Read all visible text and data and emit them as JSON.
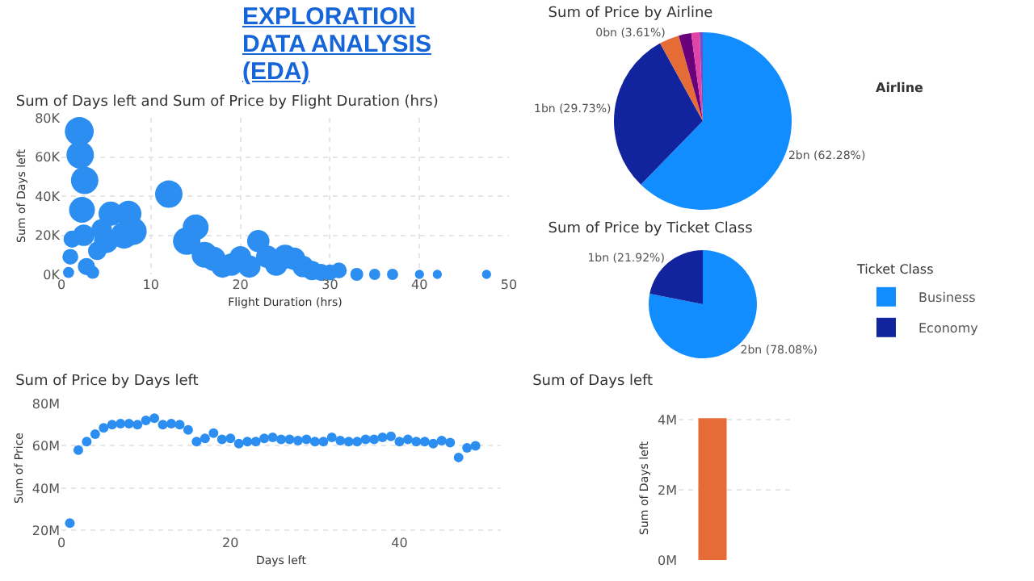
{
  "chart_data": [
    {
      "type": "other",
      "title": "EXPLORATION DATA ANALYSIS (EDA)"
    },
    {
      "type": "bubble",
      "title": "Sum of Days left and Sum of Price by Flight Duration (hrs)",
      "xlabel": "Flight Duration (hrs)",
      "ylabel": "Sum of Days left",
      "grid": true,
      "legend": false,
      "marker": "circle",
      "xlim": [
        0,
        50
      ],
      "xticks": [
        0,
        10,
        20,
        30,
        40,
        50
      ],
      "ylim": [
        0,
        80000
      ],
      "yticks": [
        {
          "value": 0,
          "label": "0K"
        },
        {
          "value": 20000,
          "label": "20K"
        },
        {
          "value": 40000,
          "label": "40K"
        },
        {
          "value": 60000,
          "label": "60K"
        },
        {
          "value": 80000,
          "label": "80K"
        }
      ],
      "series": [
        {
          "color": "#2b8ef0",
          "x": [
            2.0,
            2.1,
            2.6,
            2.3,
            2.5,
            1.2,
            1.0,
            2.8,
            0.8,
            3.5,
            4,
            4.5,
            5,
            5.5,
            7,
            7.5,
            8,
            12,
            14,
            15,
            16,
            17,
            18,
            19,
            20,
            21,
            22,
            23,
            24,
            25,
            26,
            27,
            28,
            29,
            30,
            31,
            33,
            35,
            37,
            40,
            42,
            47.5
          ],
          "values": [
            73000,
            61000,
            48000,
            33000,
            20000,
            18000,
            9000,
            4000,
            1000,
            1000,
            12000,
            23000,
            17000,
            31000,
            20000,
            31000,
            22000,
            41000,
            17000,
            24000,
            10000,
            8000,
            4000,
            5000,
            9000,
            4000,
            17000,
            9000,
            5000,
            9000,
            8000,
            4000,
            2000,
            1000,
            1000,
            2000,
            0,
            0,
            0,
            0,
            0,
            0
          ],
          "sizes": [
            1,
            0.9,
            0.9,
            0.8,
            0.55,
            0.35,
            0.3,
            0.35,
            0.15,
            0.2,
            0.4,
            0.5,
            0.7,
            0.7,
            0.85,
            0.8,
            0.9,
            0.9,
            0.9,
            0.8,
            0.8,
            0.7,
            0.6,
            0.6,
            0.55,
            0.6,
            0.6,
            0.6,
            0.6,
            0.7,
            0.6,
            0.55,
            0.45,
            0.35,
            0.3,
            0.3,
            0.2,
            0.15,
            0.15,
            0.1,
            0.1,
            0.1
          ]
        }
      ]
    },
    {
      "type": "pie",
      "title": "Sum of Price by Airline",
      "legend_title": "Airline",
      "categories": [
        null,
        null,
        null,
        null,
        null,
        null
      ],
      "values": [
        62.28,
        29.73,
        3.61,
        2.3,
        1.5,
        0.58
      ],
      "colors": [
        "#118dff",
        "#12239e",
        "#e66c37",
        "#6b007b",
        "#e044a7",
        "#744ec2"
      ],
      "value_labels": [
        "2bn (62.28%)",
        "1bn (29.73%)",
        "0bn (3.61%)",
        null,
        null,
        null
      ]
    },
    {
      "type": "pie",
      "title": "Sum of Price by Ticket Class",
      "legend_title": "Ticket Class",
      "legend": "right",
      "categories": [
        "Business",
        "Economy"
      ],
      "values": [
        78.08,
        21.92
      ],
      "colors": [
        "#118dff",
        "#12239e"
      ],
      "value_labels": [
        "2bn (78.08%)",
        "1bn (21.92%)"
      ]
    },
    {
      "type": "scatter",
      "title": "Sum of Price by Days left",
      "xlabel": "Days left",
      "ylabel": "Sum of Price",
      "grid": "y",
      "marker": "circle",
      "xlim": [
        0,
        52
      ],
      "xticks": [
        0,
        20,
        40
      ],
      "ylim": [
        19,
        80
      ],
      "yticks": [
        {
          "value": 20,
          "label": "20M"
        },
        {
          "value": 40,
          "label": "40M"
        },
        {
          "value": 60,
          "label": "60M"
        },
        {
          "value": 80,
          "label": "80M"
        }
      ],
      "series": [
        {
          "color": "#2b8ef0",
          "x": [
            1,
            2,
            3,
            4,
            5,
            6,
            7,
            8,
            9,
            10,
            11,
            12,
            13,
            14,
            15,
            16,
            17,
            18,
            19,
            20,
            21,
            22,
            23,
            24,
            25,
            26,
            27,
            28,
            29,
            30,
            31,
            32,
            33,
            34,
            35,
            36,
            37,
            38,
            39,
            40,
            41,
            42,
            43,
            44,
            45,
            46,
            47,
            48,
            49
          ],
          "values": [
            23.5,
            58,
            62,
            65.5,
            68.5,
            70,
            70.5,
            70.5,
            70,
            72,
            73,
            70,
            70.5,
            70,
            67.5,
            62,
            63.5,
            66,
            63,
            63.5,
            61,
            62,
            62,
            63.5,
            64,
            63,
            63,
            62.5,
            63,
            62,
            62,
            64,
            62.5,
            62,
            62,
            63,
            63,
            64,
            64.5,
            62,
            63,
            62,
            62,
            61,
            62.5,
            61.5,
            54.5,
            59,
            60
          ]
        }
      ]
    },
    {
      "type": "bar",
      "title": "Sum of Days left",
      "ylabel": "Sum of Days left",
      "grid": "y",
      "categories": [
        null
      ],
      "values": [
        4.05
      ],
      "color": "#e66c37",
      "ylim": [
        0,
        4.1
      ],
      "yticks": [
        {
          "value": 0,
          "label": "0M"
        },
        {
          "value": 2,
          "label": "2M"
        },
        {
          "value": 4,
          "label": "4M"
        }
      ]
    }
  ]
}
